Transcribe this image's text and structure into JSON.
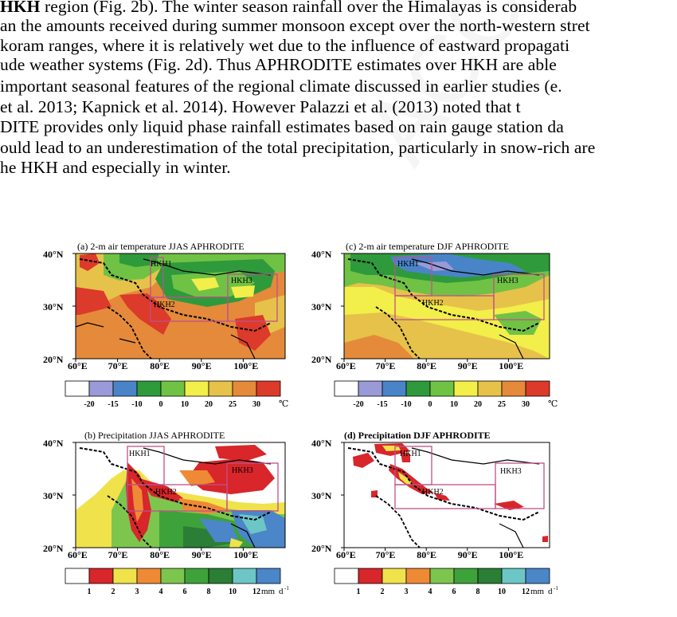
{
  "text_lines": [
    {
      "bold": "HKH",
      "rest": " region (Fig. 2b). The winter season rainfall over the Himalayas is considerab"
    },
    {
      "bold": "",
      "rest": "an the amounts received during summer monsoon except over the north-western stret"
    },
    {
      "bold": "",
      "rest": "koram ranges, where it is relatively wet due to the influence of eastward propagati"
    },
    {
      "bold": "",
      "rest": "ude weather systems (Fig. 2d). Thus APHRODITE estimates over HKH are able"
    },
    {
      "bold": "",
      "rest": "important seasonal features of the regional climate discussed in earlier studies (e."
    },
    {
      "bold": "",
      "rest": "et al. 2013; Kapnick et al. 2014).  However Palazzi et al. (2013) noted that t"
    },
    {
      "bold": "",
      "rest": "DITE provides only liquid phase rainfall estimates based on rain gauge station da"
    },
    {
      "bold": "",
      "rest": "ould lead to an underestimation of the total precipitation, particularly in snow-rich are"
    },
    {
      "bold": "",
      "rest": "he HKH and especially in winter."
    }
  ],
  "watermark": "ACCEPTED MANUSCRIPT",
  "figure": {
    "panels": [
      {
        "id": "a",
        "title": "(a) 2-m air temperature JJAS APHRODITE",
        "kind": "temperature"
      },
      {
        "id": "c",
        "title": "(c) 2-m air temperature DJF APHRODITE",
        "kind": "temperature"
      },
      {
        "id": "b",
        "title": "(b) Precipitation JJAS APHRODITE",
        "kind": "precipitation"
      },
      {
        "id": "d",
        "title": "(d) Precipitation DJF APHRODITE",
        "kind": "precipitation"
      }
    ],
    "lat_labels": [
      "40°N",
      "30°N",
      "20°N"
    ],
    "lon_labels": [
      "60°E",
      "70°E",
      "80°E",
      "90°E",
      "100°E"
    ],
    "region_labels": [
      "HKH1",
      "HKH2",
      "HKH3"
    ],
    "temp_colorbar": {
      "colors": [
        "#ffffff",
        "#9a9ad8",
        "#4a84c8",
        "#2e9a3c",
        "#70c244",
        "#f2ee4a",
        "#e6c24a",
        "#e48a3a",
        "#dc3a2a"
      ],
      "ticks": [
        "-20",
        "-15",
        "-10",
        "0",
        "10",
        "20",
        "25",
        "30"
      ],
      "unit": "℃"
    },
    "precip_colorbar": {
      "colors": [
        "#ffffff",
        "#d8262a",
        "#f0e24a",
        "#ee8a36",
        "#7cc64e",
        "#3ea23a",
        "#2a7e36",
        "#6cc6c6",
        "#4a86c8"
      ],
      "ticks": [
        "1",
        "2",
        "3",
        "4",
        "6",
        "8",
        "10",
        "12"
      ],
      "unit": "mm",
      "unit_suffix": "d",
      "unit_exp": "-1"
    }
  }
}
